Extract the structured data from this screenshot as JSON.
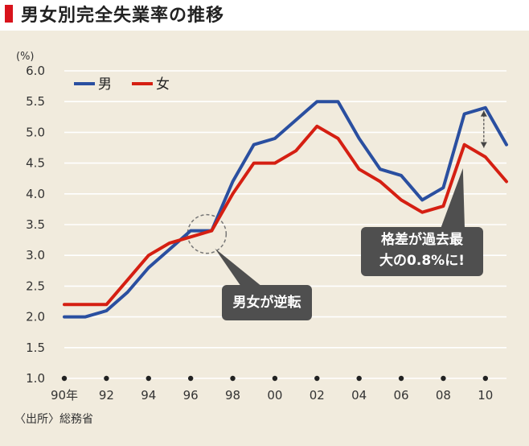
{
  "header": {
    "title": "男女別完全失業率の推移"
  },
  "callouts": {
    "crossover": "男女が逆転",
    "gap_line1": "格差が過去最",
    "gap_line2": "大の0.8%に!"
  },
  "source": "〈出所〉総務省",
  "colors": {
    "male": "#2a4fa0",
    "female": "#d51f12",
    "accent": "#d8131c",
    "panel": "#f1ebdd"
  },
  "chart_data": {
    "type": "line",
    "ylabel": "(%)",
    "ylim": [
      1.0,
      6.0
    ],
    "yticks": [
      "1.0",
      "1.5",
      "2.0",
      "2.5",
      "3.0",
      "3.5",
      "4.0",
      "4.5",
      "5.0",
      "5.5",
      "6.0"
    ],
    "xlim": [
      1990,
      2011
    ],
    "xticks": [
      {
        "year": 1990,
        "label": "90年"
      },
      {
        "year": 1992,
        "label": "92"
      },
      {
        "year": 1994,
        "label": "94"
      },
      {
        "year": 1996,
        "label": "96"
      },
      {
        "year": 1998,
        "label": "98"
      },
      {
        "year": 2000,
        "label": "00"
      },
      {
        "year": 2002,
        "label": "02"
      },
      {
        "year": 2004,
        "label": "04"
      },
      {
        "year": 2006,
        "label": "06"
      },
      {
        "year": 2008,
        "label": "08"
      },
      {
        "year": 2010,
        "label": "10"
      }
    ],
    "x": [
      1990,
      1991,
      1992,
      1993,
      1994,
      1995,
      1996,
      1997,
      1998,
      1999,
      2000,
      2001,
      2002,
      2003,
      2004,
      2005,
      2006,
      2007,
      2008,
      2009,
      2010,
      2011
    ],
    "series": [
      {
        "name": "男",
        "key": "male",
        "values": [
          2.0,
          2.0,
          2.1,
          2.4,
          2.8,
          3.1,
          3.4,
          3.4,
          4.2,
          4.8,
          4.9,
          5.2,
          5.5,
          5.5,
          4.9,
          4.4,
          4.3,
          3.9,
          4.1,
          5.3,
          5.4,
          4.8
        ]
      },
      {
        "name": "女",
        "key": "female",
        "values": [
          2.2,
          2.2,
          2.2,
          2.6,
          3.0,
          3.2,
          3.3,
          3.4,
          4.0,
          4.5,
          4.5,
          4.7,
          5.1,
          4.9,
          4.4,
          4.2,
          3.9,
          3.7,
          3.8,
          4.8,
          4.6,
          4.2
        ]
      }
    ],
    "legend": "top-left"
  }
}
